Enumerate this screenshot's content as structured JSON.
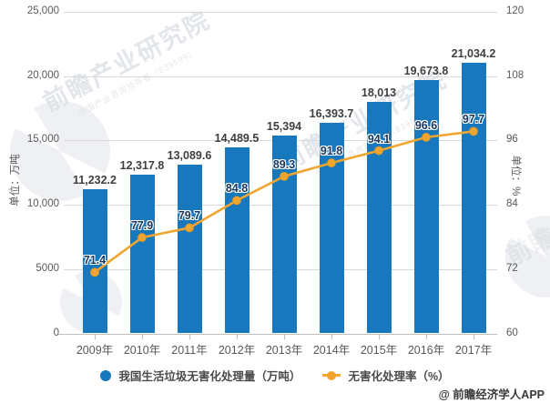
{
  "chart_data": {
    "type": "bar",
    "combo": "bar+line",
    "categories": [
      "2009年",
      "2010年",
      "2011年",
      "2012年",
      "2013年",
      "2014年",
      "2015年",
      "2016年",
      "2017年"
    ],
    "series": [
      {
        "name": "我国生活垃圾无害化处理量（万吨）",
        "type": "bar",
        "axis": "left",
        "color": "#1878be",
        "values": [
          11232.2,
          12317.8,
          13089.6,
          14489.5,
          15394,
          16393.7,
          18013,
          19673.8,
          21034.2
        ],
        "data_labels": [
          "11,232.2",
          "12,317.8",
          "13,089.6",
          "14,489.5",
          "15,394",
          "16,393.7",
          "18,013",
          "19,673.8",
          "21,034.2"
        ]
      },
      {
        "name": "无害化处理率（%）",
        "type": "line",
        "axis": "right",
        "color": "#f0a52f",
        "values": [
          71.4,
          77.9,
          79.7,
          84.8,
          89.3,
          91.8,
          94.1,
          96.6,
          97.7
        ],
        "data_labels": [
          "71.4",
          "77.9",
          "79.7",
          "84.8",
          "89.3",
          "91.8",
          "94.1",
          "96.6",
          "97.7"
        ]
      }
    ],
    "ylabel": "单位：万吨",
    "y2label": "单位：%",
    "ylim": [
      0,
      25000
    ],
    "y2lim": [
      60,
      120
    ],
    "y_ticks": {
      "values": [
        0,
        5000,
        10000,
        15000,
        20000,
        25000
      ],
      "labels": [
        "0",
        "5000",
        "10,000",
        "15,000",
        "20,000",
        "25,000"
      ]
    },
    "y2_ticks": {
      "values": [
        60,
        72,
        84,
        96,
        108,
        120
      ],
      "labels": [
        "60",
        "72",
        "84",
        "96",
        "108",
        "120"
      ]
    },
    "grid": "horizontal",
    "legend_position": "bottom",
    "title": ""
  },
  "watermark": {
    "text": "前瞻产业研究院",
    "subtext": "中国产业咨询领导者（839599）"
  },
  "credit": "@ 前瞻经济学人APP",
  "colors": {
    "bar": "#1878be",
    "line": "#f0a52f",
    "line_label": "#17375e",
    "bar_label": "#3f3f3f",
    "axis_text": "#595959",
    "gridline": "#d9d9d9"
  }
}
